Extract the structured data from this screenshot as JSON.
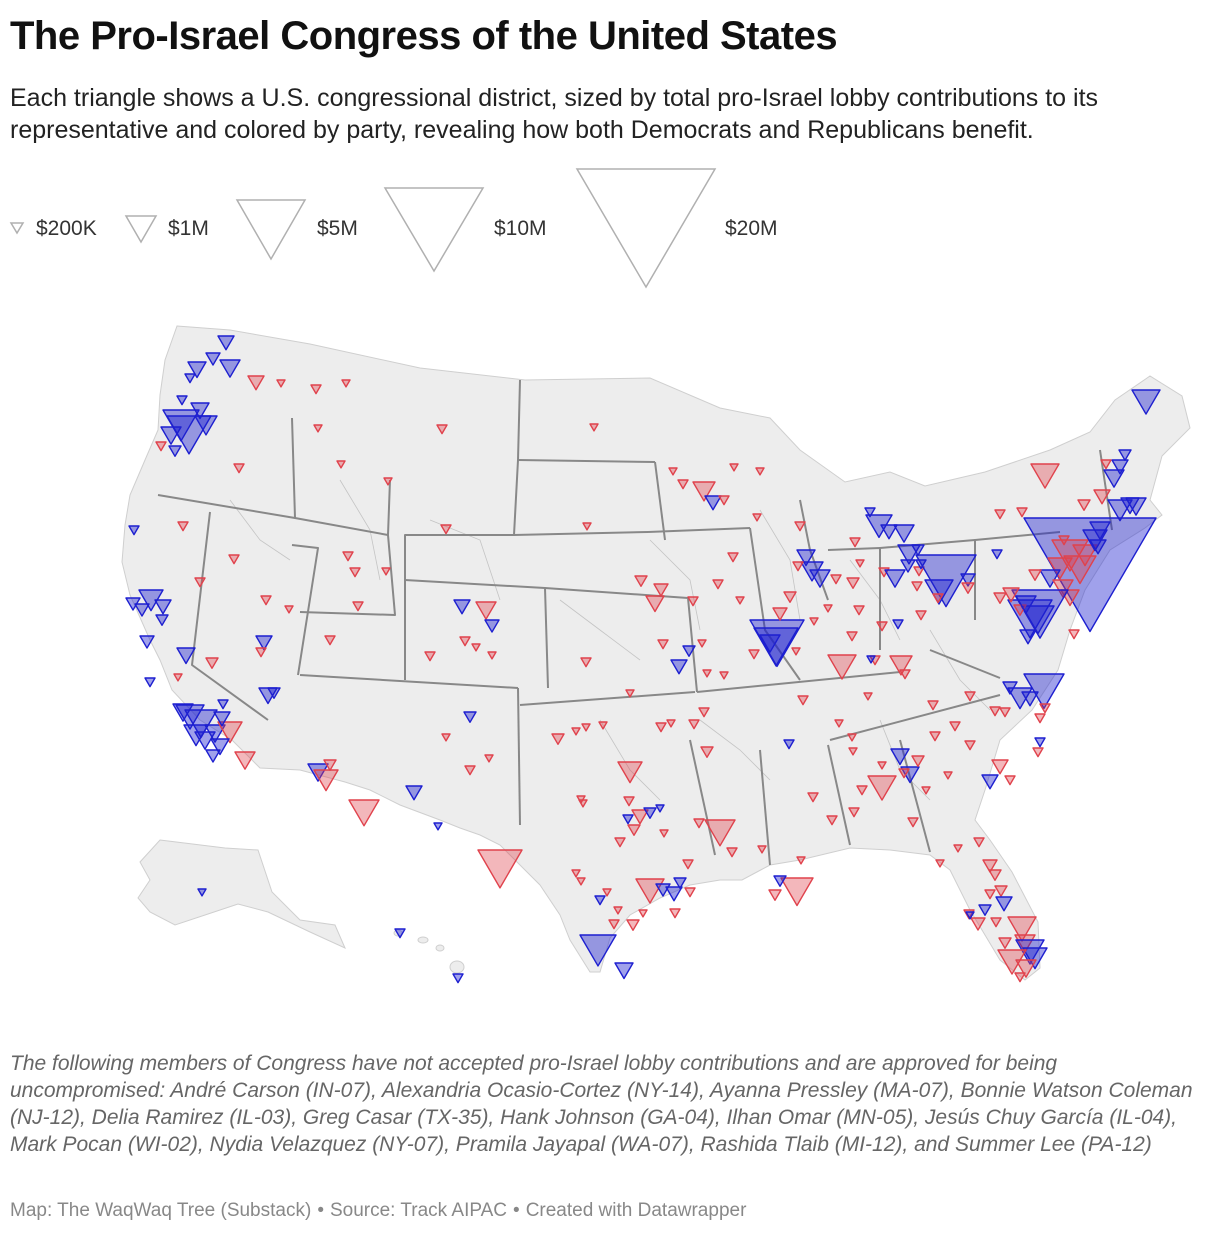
{
  "header": {
    "title": "The Pro-Israel Congress of the United States",
    "subtitle": "Each triangle shows a U.S. congressional district, sized by total pro-Israel lobby contributions to its representative and colored by party, revealing how both Democrats and Republicans benefit."
  },
  "legend": {
    "items": [
      {
        "label": "$200K",
        "value_usd": 200000
      },
      {
        "label": "$1M",
        "value_usd": 1000000
      },
      {
        "label": "$5M",
        "value_usd": 5000000
      },
      {
        "label": "$10M",
        "value_usd": 10000000
      },
      {
        "label": "$20M",
        "value_usd": 20000000
      }
    ]
  },
  "colors": {
    "democrat": "#1d1fd0",
    "republican": "#e0424c",
    "land": "#ededed",
    "state_border": "#888888",
    "district_border": "#bcbcbc",
    "legend_stroke": "#b0b0b0"
  },
  "map_elements": {
    "contiguous_us": "map-contiguous-us",
    "alaska": "map-alaska",
    "hawaii": "map-hawaii",
    "markers": "district-markers"
  },
  "footnote": {
    "text": "The following members of Congress have not accepted pro-Israel lobby contributions and are approved for being uncompromised: André Carson (IN-07), Alexandria Ocasio-Cortez (NY-14), Ayanna Pressley (MA-07), Bonnie Watson Coleman (NJ-12), Delia Ramirez (IL-03), Greg Casar (TX-35), Hank Johnson (GA-04), Ilhan Omar (MN-05), Jesús Chuy García (IL-04), Mark Pocan (WI-02), Nydia Velazquez (NY-07), Pramila Jayapal (WA-07), Rashida Tlaib (MI-12), and Summer Lee (PA-12)"
  },
  "credits": {
    "map": "Map: The WaqWaq Tree (Substack)",
    "source": "Source: Track AIPAC",
    "tool": "Created with Datawrapper",
    "separator": "•"
  }
}
